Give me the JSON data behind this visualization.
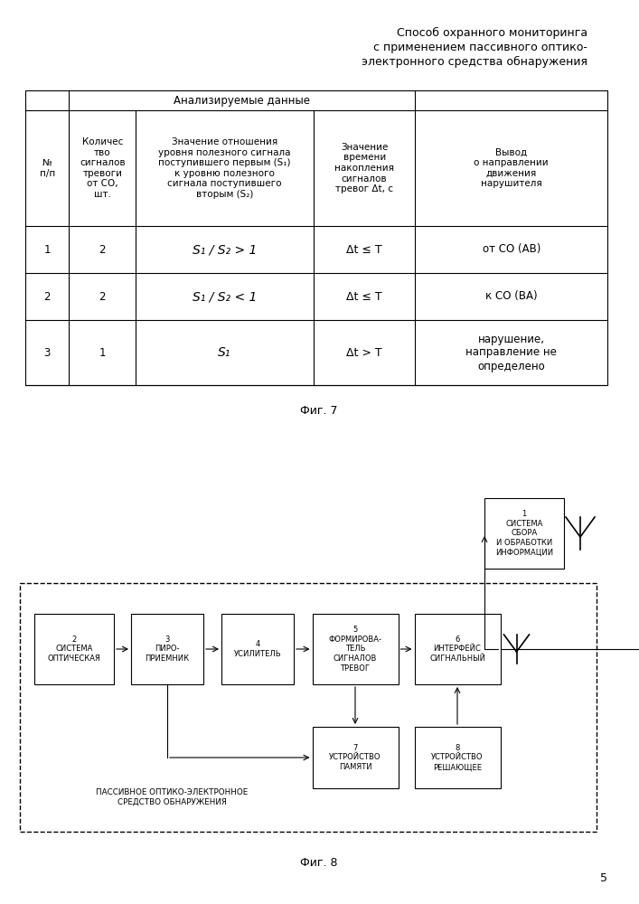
{
  "title_line1": "Способ охранного мониторинга",
  "title_line2": "с применением пассивного оптико-",
  "title_line3": "электронного средства обнаружения",
  "fig7_caption": "Фиг. 7",
  "fig8_caption": "Фиг. 8",
  "page_number": "5",
  "table": {
    "header_span": "Анализируемые данные",
    "col0_header": "№\nп/п",
    "col1_header": "Количес\nтво\nсигналов\nтревоги\nот СО,\nшт.",
    "col2_header": "Значение отношения\nуровня полезного сигнала\nпоступившего первым (S₁)\nк уровню полезного\nсигнала поступившего\nвторым (S₂)",
    "col3_header": "Значение\nвремени\nнакопления\nсигналов\nтревог Δt, с",
    "col4_header": "Вывод\nо направлении\nдвижения\nнарушителя",
    "rows": [
      [
        "1",
        "2",
        "S₁ / S₂ > 1",
        "Δt ≤ T",
        "от СО (АВ)"
      ],
      [
        "2",
        "2",
        "S₁ / S₂ < 1",
        "Δt ≤ T",
        "к СО (ВА)"
      ],
      [
        "3",
        "1",
        "S₁",
        "Δt > T",
        "нарушение,\nнаправление не\nопределено"
      ]
    ]
  }
}
